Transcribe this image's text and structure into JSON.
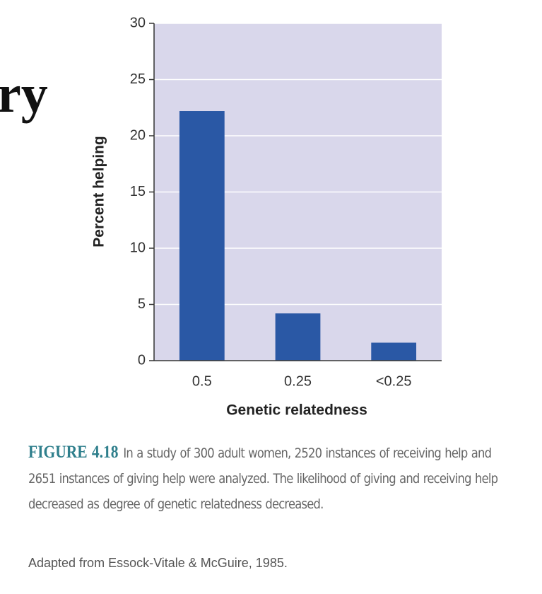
{
  "slide_title_fragment": "ry",
  "chart_data": {
    "type": "bar",
    "categories": [
      "0.5",
      "0.25",
      "<0.25"
    ],
    "values": [
      22.2,
      4.2,
      1.6
    ],
    "color": "#2a58a5",
    "ylim": [
      0,
      30
    ],
    "yticks": [
      0,
      5,
      10,
      15,
      20,
      25,
      30
    ],
    "grid": true,
    "x_label": "Genetic relatedness",
    "y_label": "Percent helping"
  },
  "figure_label": "FIGURE 4.18",
  "caption": "In a study of 300 adult women, 2520 instances of receiving help and 2651 instances of giving help were analyzed. The likelihood of giving and receiving help decreased as degree of genetic relatedness decreased.",
  "source": "Adapted from Essock-Vitale & McGuire, 1985."
}
